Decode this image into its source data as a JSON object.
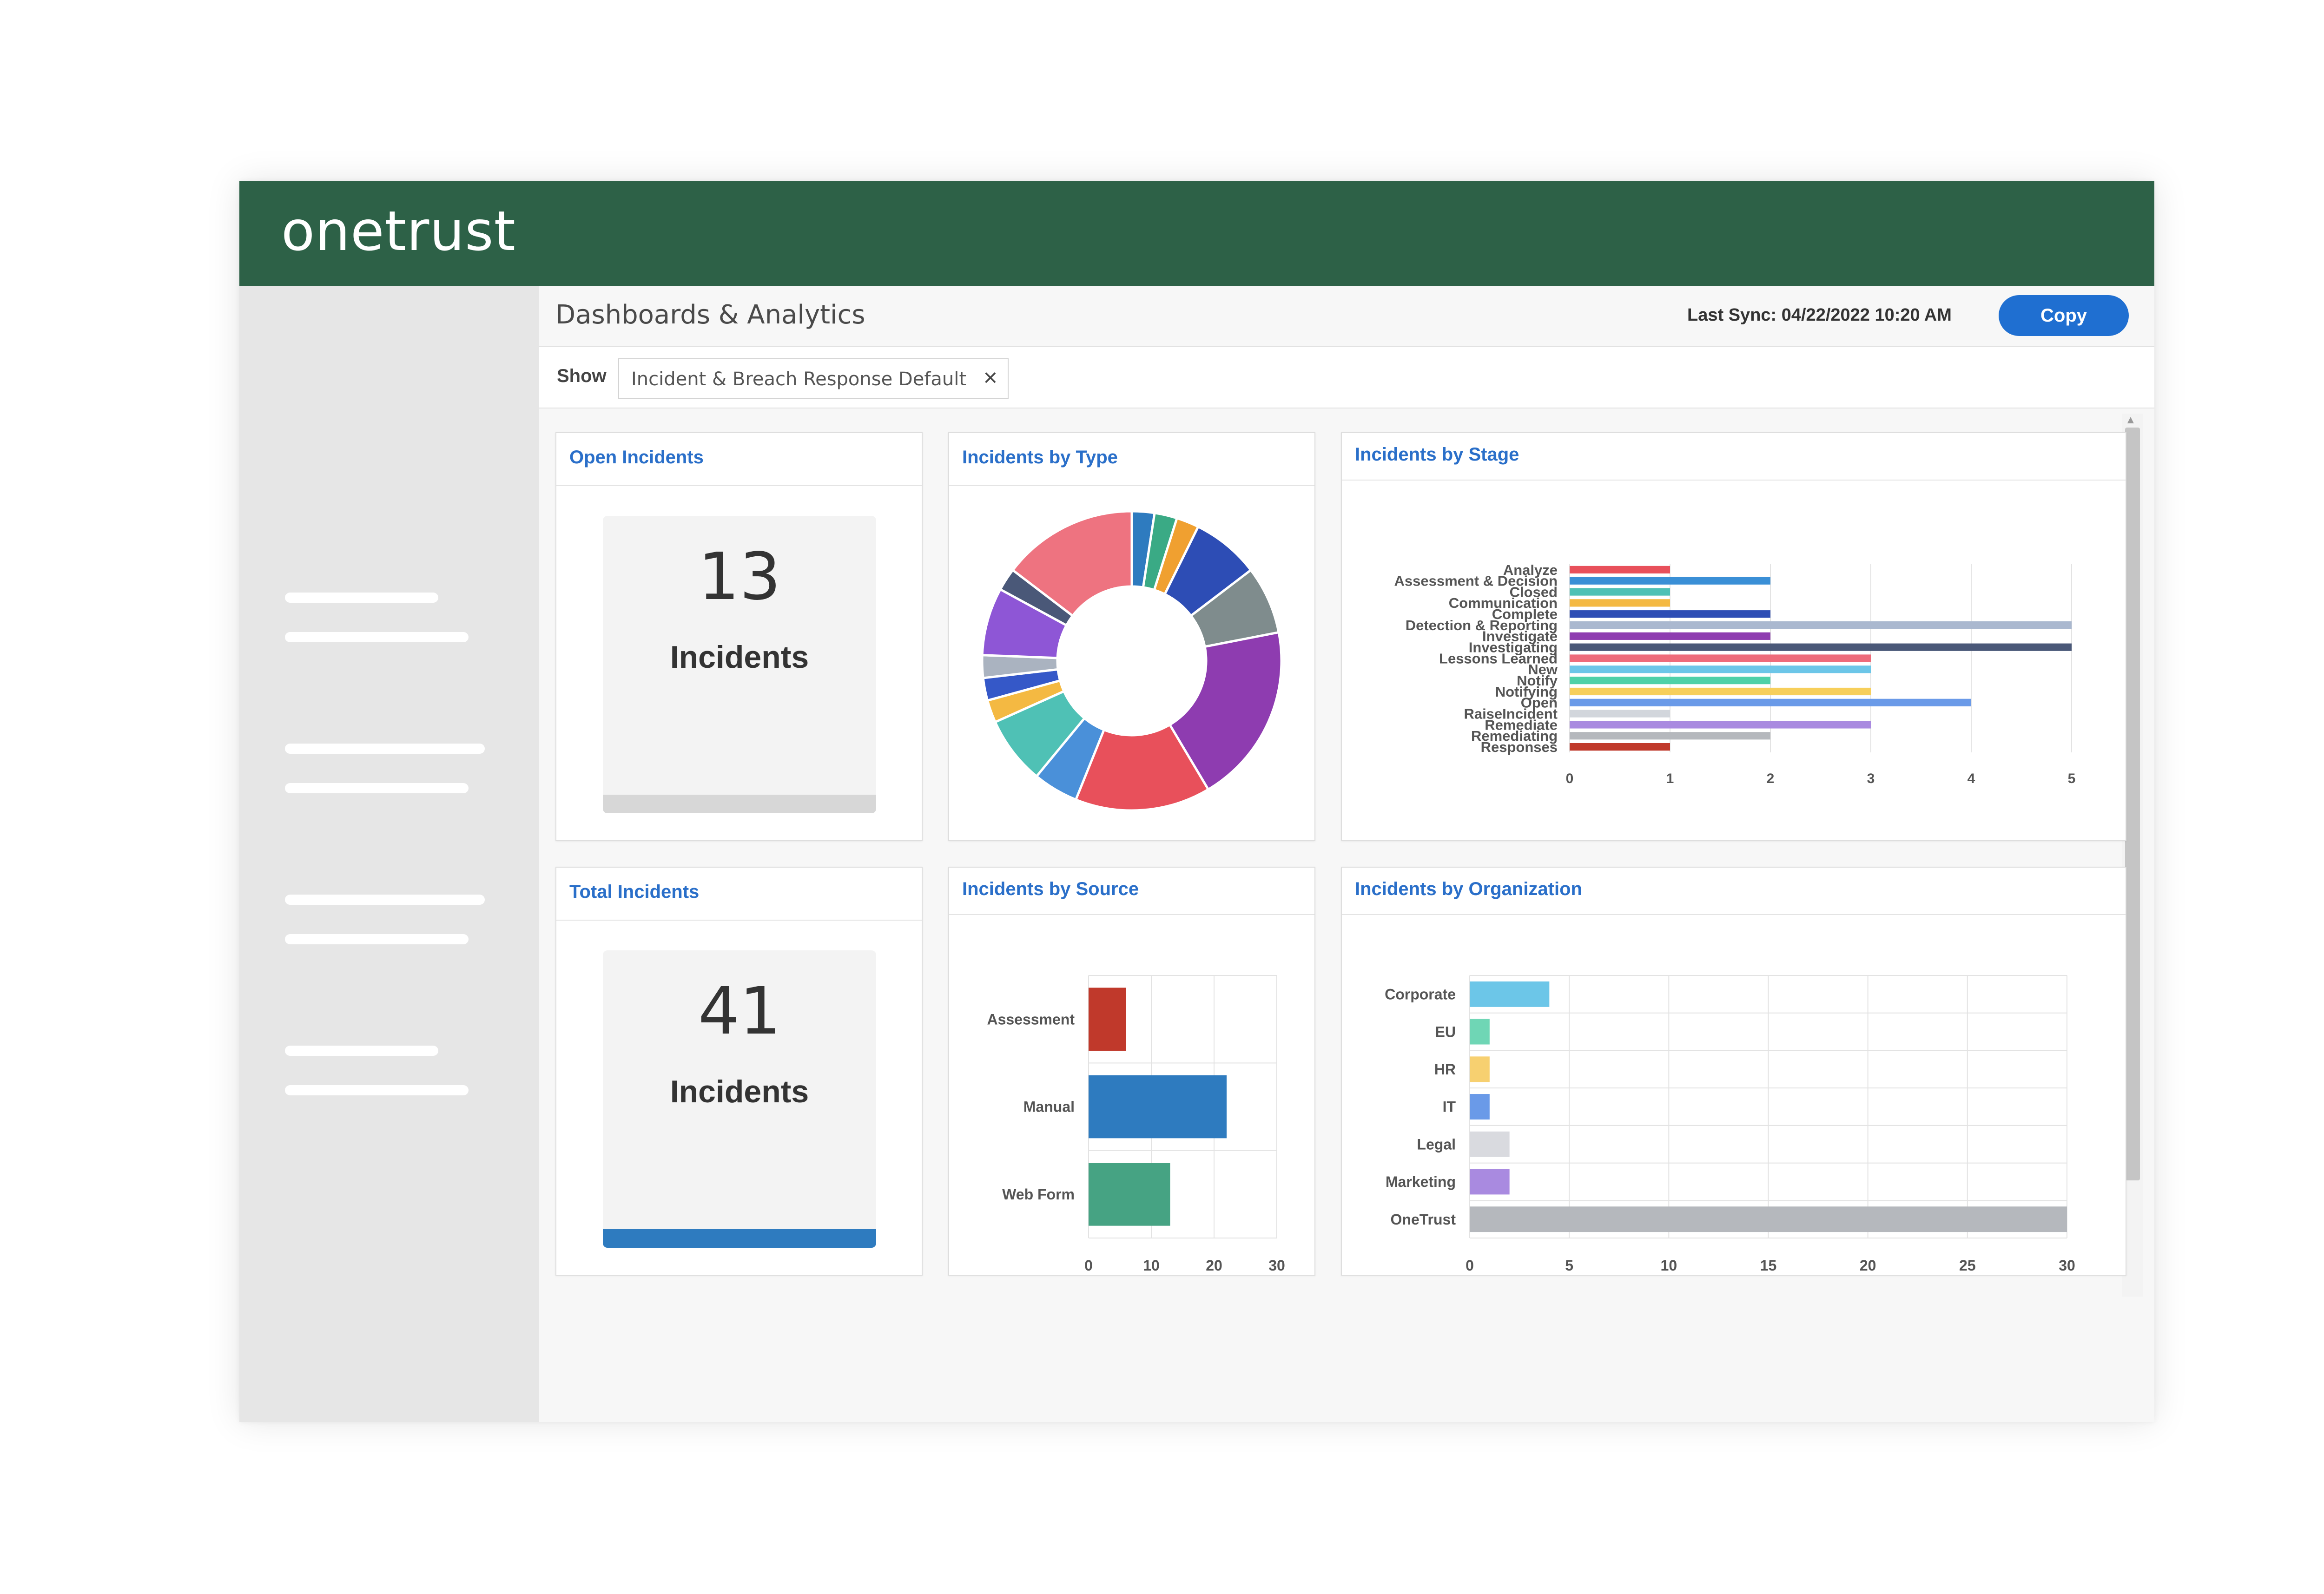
{
  "app": {
    "logo": "onetrust"
  },
  "header": {
    "title": "Dashboards & Analytics",
    "last_sync": "Last Sync: 04/22/2022 10:20 AM",
    "copy_label": "Copy"
  },
  "filter": {
    "show_label": "Show",
    "selected": "Incident & Breach Response Default",
    "clear_icon": "close-icon"
  },
  "colors": {
    "brand_green": "#2d6147",
    "accent_blue": "#1f6fd1",
    "title_blue": "#2a6fc9"
  },
  "cards": {
    "open": {
      "title": "Open Incidents",
      "value": "13",
      "label": "Incidents",
      "bar_color": "#d7d7d7"
    },
    "total": {
      "title": "Total Incidents",
      "value": "41",
      "label": "Incidents",
      "bar_color": "#2e7bbf"
    },
    "type": {
      "title": "Incidents by Type"
    },
    "stage": {
      "title": "Incidents by Stage"
    },
    "source": {
      "title": "Incidents by Source"
    },
    "org": {
      "title": "Incidents by Organization"
    }
  },
  "chart_data": [
    {
      "id": "type",
      "type": "pie",
      "donut": true,
      "slices": [
        {
          "value": 1,
          "color": "#2e7bbf"
        },
        {
          "value": 1,
          "color": "#3aaa85"
        },
        {
          "value": 1,
          "color": "#f0a030"
        },
        {
          "value": 3,
          "color": "#2d4db5"
        },
        {
          "value": 3,
          "color": "#7f8c8d"
        },
        {
          "value": 8,
          "color": "#8e3cb0"
        },
        {
          "value": 6,
          "color": "#e8505b"
        },
        {
          "value": 2,
          "color": "#4a90d9"
        },
        {
          "value": 3,
          "color": "#4fc1b5"
        },
        {
          "value": 1,
          "color": "#f4b942"
        },
        {
          "value": 1,
          "color": "#3558c8"
        },
        {
          "value": 1,
          "color": "#aab3c0"
        },
        {
          "value": 3,
          "color": "#8e56d6"
        },
        {
          "value": 1,
          "color": "#4a5878"
        },
        {
          "value": 6,
          "color": "#ee7380"
        }
      ]
    },
    {
      "id": "stage",
      "type": "bar",
      "orientation": "horizontal",
      "categories": [
        "Analyze",
        "Assessment & Decision",
        "Closed",
        "Communication",
        "Complete",
        "Detection & Reporting",
        "Investigate",
        "Investigating",
        "Lessons Learned",
        "New",
        "Notify",
        "Notifying",
        "Open",
        "RaiseIncident",
        "Remediate",
        "Remediating",
        "Responses"
      ],
      "values": [
        1,
        2,
        1,
        1,
        2,
        5,
        2,
        5,
        3,
        3,
        2,
        3,
        4,
        1,
        3,
        2,
        1
      ],
      "colors": [
        "#e8505b",
        "#3a8fd6",
        "#4fc1b5",
        "#f4b942",
        "#2d4db5",
        "#aab8cf",
        "#8e3cb0",
        "#4a5878",
        "#ee6b7a",
        "#6cc6e8",
        "#4fd1a8",
        "#f7cf5a",
        "#6a9ae8",
        "#d2d6dc",
        "#a98ae0",
        "#b5b8bd",
        "#c0392b"
      ],
      "xlim": [
        0,
        5
      ],
      "xticks": [
        "0",
        "1",
        "2",
        "3",
        "4",
        "5"
      ],
      "grid": true
    },
    {
      "id": "source",
      "type": "bar",
      "orientation": "horizontal",
      "categories": [
        "Assessment",
        "Manual",
        "Web Form"
      ],
      "values": [
        6,
        22,
        13
      ],
      "colors": [
        "#c0392b",
        "#2e7bbf",
        "#46a383"
      ],
      "xlim": [
        0,
        30
      ],
      "xticks": [
        "0",
        "10",
        "20",
        "30"
      ],
      "grid": true
    },
    {
      "id": "org",
      "type": "bar",
      "orientation": "horizontal",
      "categories": [
        "Corporate",
        "EU",
        "HR",
        "IT",
        "Legal",
        "Marketing",
        "OneTrust"
      ],
      "values": [
        4,
        1,
        1,
        1,
        2,
        2,
        30
      ],
      "colors": [
        "#6cc6e8",
        "#6fd6b5",
        "#f7d070",
        "#6a9ae8",
        "#d9dadf",
        "#a98ae0",
        "#b5b8bd"
      ],
      "xlim": [
        0,
        30
      ],
      "xticks": [
        "0",
        "5",
        "10",
        "15",
        "20",
        "25",
        "30"
      ],
      "grid": true
    }
  ]
}
